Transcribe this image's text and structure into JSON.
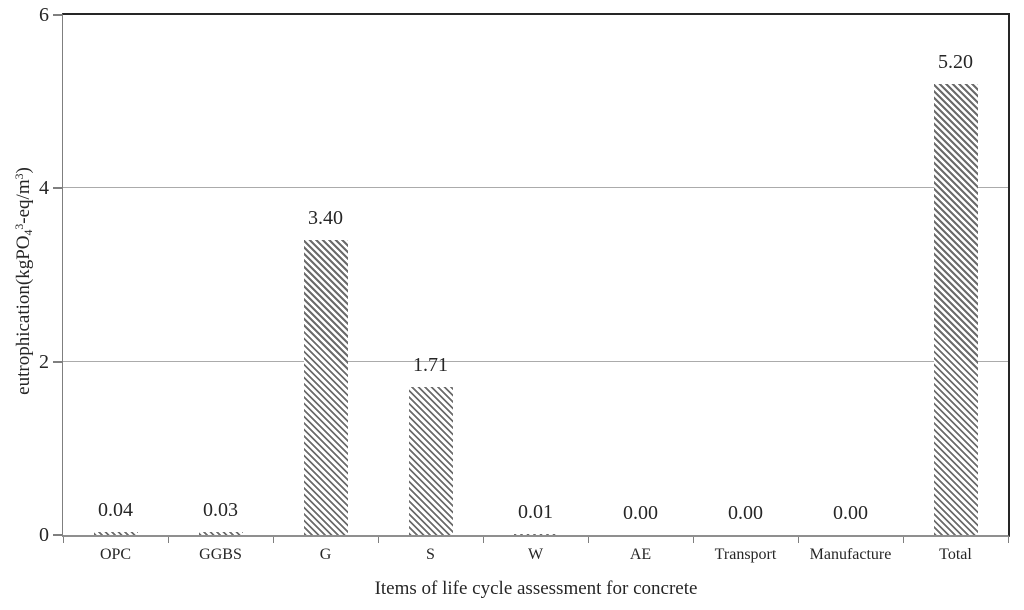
{
  "chart_data": {
    "type": "bar",
    "title": "",
    "xlabel": "Items of life cycle assessment for concrete",
    "ylabel": "eutrophication(kgPO₄³-eq/m³)",
    "ylabel_parts": {
      "p1": "eutrophication(kgPO",
      "sub1": "4",
      "sup1": "3",
      "p2": "-eq/m",
      "sup2": "3",
      "p3": ")"
    },
    "categories": [
      "OPC",
      "GGBS",
      "G",
      "S",
      "W",
      "AE",
      "Transport",
      "Manufacture",
      "Total"
    ],
    "values": [
      0.04,
      0.03,
      3.4,
      1.71,
      0.01,
      0.0,
      0.0,
      0.0,
      5.2
    ],
    "value_labels": [
      "0.04",
      "0.03",
      "3.40",
      "1.71",
      "0.01",
      "0.00",
      "0.00",
      "0.00",
      "5.20"
    ],
    "ylim": [
      0,
      6
    ],
    "yticks": [
      0,
      2,
      4,
      6
    ],
    "ytick_labels": [
      "0",
      "2",
      "4",
      "6"
    ],
    "grid": "horizontal-only",
    "legend": "none",
    "bar_style": {
      "hatch": "diagonal-down",
      "hatch_color": "#6b6b6b",
      "fill": "#ffffff"
    },
    "colors": {
      "gridline": "#ababab",
      "axis_line_gray": "#7f7f7f",
      "border_dark": "#262626",
      "text": "#262626",
      "background": "#ffffff"
    }
  }
}
